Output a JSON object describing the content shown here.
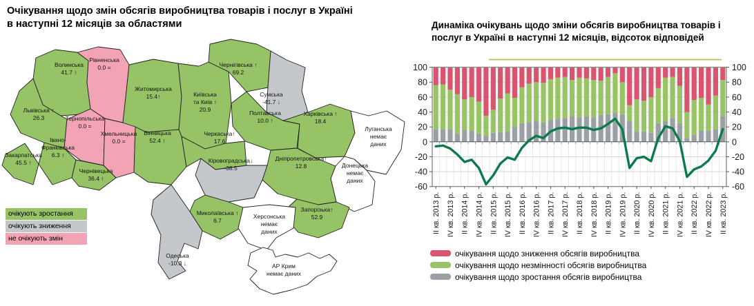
{
  "map": {
    "title_line1": "Очікування щодо змін обсягів виробництва товарів і послуг в Україні",
    "title_line2": "в наступні 12 місяців за областями",
    "no_data_text": "немає даних",
    "legend": [
      {
        "label": "очікують зростання",
        "status": "growth"
      },
      {
        "label": "очікують зниження",
        "status": "decline"
      },
      {
        "label": "не очікують змін",
        "status": "no_change"
      }
    ],
    "regions": [
      {
        "id": "volyn",
        "name": "Волинська",
        "value": "41.7",
        "trend": "up",
        "status": "growth",
        "lines": [
          "Волинська",
          "41.7 ↑"
        ]
      },
      {
        "id": "rivne",
        "name": "Рівненська",
        "value": "0.0",
        "trend": "equal",
        "status": "no_change",
        "lines": [
          "Рівненська",
          "0.0 ="
        ]
      },
      {
        "id": "zhytomyr",
        "name": "Житомирська",
        "value": "15.4",
        "trend": "up",
        "status": "growth",
        "lines": [
          "Житомирська",
          "15.4↑"
        ]
      },
      {
        "id": "kyivska",
        "name": "Київська та Київ",
        "value": "20.9",
        "trend": "up",
        "status": "growth",
        "lines": [
          "Київська",
          "та Київ ↑",
          "20.9"
        ]
      },
      {
        "id": "chernihiv",
        "name": "Чернігівська",
        "value": "69.2",
        "trend": "up",
        "status": "growth",
        "lines": [
          "Чернігівська ↑",
          "69.2"
        ]
      },
      {
        "id": "sumy",
        "name": "Сумська",
        "value": "-41.7",
        "trend": "down",
        "status": "decline",
        "lines": [
          "Сумська",
          "-41.7 ↓"
        ]
      },
      {
        "id": "lviv",
        "name": "Львівська",
        "value": "26.3",
        "trend": "up",
        "status": "growth",
        "lines": [
          "Львівська ↑",
          "26.3"
        ]
      },
      {
        "id": "ternopil",
        "name": "Тернопільська",
        "value": "0.0",
        "trend": "equal",
        "status": "no_change",
        "lines": [
          "Тернопільська",
          "0.0 ="
        ]
      },
      {
        "id": "khmelnytskyi",
        "name": "Хмельницька",
        "value": "0.0",
        "trend": "equal",
        "status": "no_change",
        "lines": [
          "Хмельницька",
          "0.0 ="
        ]
      },
      {
        "id": "ivano",
        "name": "Івано-Франківська",
        "value": "6.3",
        "trend": "up",
        "status": "growth",
        "lines": [
          "Івано-",
          "Франківська",
          "6.3 ↑"
        ]
      },
      {
        "id": "zakarpattia",
        "name": "Закарпатська",
        "value": "45.5",
        "trend": "up",
        "status": "growth",
        "lines": [
          "Закарпатська",
          "45.5 ↑"
        ]
      },
      {
        "id": "chernivtsi",
        "name": "Чернівецька",
        "value": "36.4",
        "trend": "up",
        "status": "growth",
        "lines": [
          "Чернівецька",
          "36.4 ↑"
        ]
      },
      {
        "id": "vinnytsia",
        "name": "Вінницька",
        "value": "52.4",
        "trend": "up",
        "status": "growth",
        "lines": [
          "Вінницька",
          "52.4 ↑"
        ]
      },
      {
        "id": "cherkasy",
        "name": "Черкаська",
        "value": "17.6",
        "trend": "up",
        "status": "growth",
        "lines": [
          "Черкаська↑",
          "17.6"
        ]
      },
      {
        "id": "poltava",
        "name": "Полтавська",
        "value": "10.0",
        "trend": "up",
        "status": "growth",
        "lines": [
          "Полтавська",
          "10.0 ↑"
        ]
      },
      {
        "id": "kharkiv",
        "name": "Харківська",
        "value": "18.4",
        "trend": "up",
        "status": "growth",
        "lines": [
          "Харківська ↑",
          "18.4"
        ]
      },
      {
        "id": "luhansk",
        "name": "Луганська",
        "value": "немає даних",
        "trend": null,
        "status": "no_data",
        "lines": [
          "Луганська",
          "немає",
          "даних"
        ]
      },
      {
        "id": "donetsk",
        "name": "Донецька",
        "value": "немає даних",
        "trend": null,
        "status": "no_data",
        "lines": [
          "Донецька",
          "немає",
          "даних"
        ]
      },
      {
        "id": "dnipro",
        "name": "Дніпропетровська",
        "value": "12.8",
        "trend": "up",
        "status": "growth",
        "lines": [
          "Дніпропетровська↑",
          "12.8"
        ]
      },
      {
        "id": "zaporizhzhia",
        "name": "Запорізька",
        "value": "52.9",
        "trend": "up",
        "status": "growth",
        "lines": [
          "Запорізька↑",
          "52.9"
        ]
      },
      {
        "id": "kirovohrad",
        "name": "Кіровоградська",
        "value": "-38.5",
        "trend": "down",
        "status": "decline",
        "lines": [
          "Кіровоградська↓",
          "-38.5"
        ]
      },
      {
        "id": "mykolaiv",
        "name": "Миколаївська",
        "value": "6.7",
        "trend": "up",
        "status": "growth",
        "lines": [
          "Миколаївська ↑",
          "6.7"
        ]
      },
      {
        "id": "odesa",
        "name": "Одеська",
        "value": "-10.3",
        "trend": "down",
        "status": "decline",
        "lines": [
          "Одеська",
          "-10.3 ↓"
        ]
      },
      {
        "id": "kherson",
        "name": "Херсонська",
        "value": "немає даних",
        "trend": null,
        "status": "no_data",
        "lines": [
          "Херсонська",
          "немає",
          "даних"
        ]
      },
      {
        "id": "crimea",
        "name": "АР Крим",
        "value": "немає даних",
        "trend": null,
        "status": "no_data",
        "lines": [
          "АР Крим",
          "немає даних"
        ]
      }
    ]
  },
  "chart": {
    "title": "Динаміка очікувань щодо зміни обсягів виробництва товарів і послуг в Україні в наступні 12 місяців, відсоток відповідей",
    "legend": [
      {
        "label": "очікування щодо зниження обсягів виробництва",
        "series": "decline"
      },
      {
        "label": "очікування щодо незмінності обсягів виробництва",
        "series": "unchanged"
      },
      {
        "label": "очікування щодо зростання обсягів виробництва",
        "series": "growth"
      }
    ]
  },
  "chart_data": {
    "type": "bar",
    "subtype": "stacked-bars-with-line",
    "title": "Динаміка очікувань щодо зміни обсягів виробництва товарів і послуг в Україні в наступні 12 місяців, відсоток відповідей",
    "ylim": [
      -60,
      100
    ],
    "y_ticks": [
      100,
      80,
      60,
      40,
      20,
      0,
      -20,
      -40,
      -60
    ],
    "grid": true,
    "legend_position": "bottom",
    "categories": [
      "II кв. 2013 р.",
      "III кв. 2013 р.",
      "IV кв. 2013 р.",
      "I кв. 2014 р.",
      "II кв. 2014 р.",
      "III кв. 2014 р.",
      "IV кв. 2014 р.",
      "I кв. 2015 р.",
      "II кв. 2015 р.",
      "III кв. 2015 р.",
      "IV кв. 2015 р.",
      "I кв. 2016 р.",
      "II кв. 2016 р.",
      "III кв. 2016 р.",
      "IV кв. 2016 р.",
      "I кв. 2017 р.",
      "II кв. 2017 р.",
      "III кв. 2017 р.",
      "IV кв. 2017 р.",
      "I кв. 2018 р.",
      "II кв. 2018 р.",
      "III кв. 2018 р.",
      "IV кв. 2018 р.",
      "I кв. 2019 р.",
      "II кв. 2019 р.",
      "III кв. 2019 р.",
      "IV кв. 2019 р.",
      "I кв. 2020 р.",
      "II кв. 2020 р.",
      "III кв. 2020 р.",
      "IV кв. 2020 р.",
      "I кв. 2021 р.",
      "II кв. 2021 р.",
      "III кв. 2021 р.",
      "IV кв. 2021 р.",
      "I кв. 2022 р.",
      "II кв. 2022 р.",
      "III кв. 2022 р.",
      "IV кв. 2022 р.",
      "I кв. 2023 р.",
      "II кв. 2023 р."
    ],
    "x_tick_labels": [
      "II кв. 2013 р.",
      "IV кв. 2013 р.",
      "II кв. 2014 р.",
      "IV кв. 2014 р.",
      "II кв. 2015 р.",
      "IV кв. 2015 р.",
      "II кв. 2016 р.",
      "IV кв. 2016 р.",
      "II кв. 2017 р.",
      "IV кв. 2017 р.",
      "II кв. 2018 р.",
      "IV кв. 2018 р.",
      "II кв. 2019 р.",
      "IV кв. 2019 р.",
      "II кв. 2020 р.",
      "IV кв. 2020 р.",
      "II кв. 2021 р.",
      "IV кв. 2021 р.",
      "II кв. 2022 р.",
      "IV кв. 2022 р.",
      "II кв. 2023 р."
    ],
    "series": [
      {
        "name": "очікування щодо зростання обсягів виробництва",
        "key": "growth",
        "stack_order": 1,
        "values": [
          17,
          17,
          17,
          11,
          16,
          15,
          11,
          8,
          12,
          13,
          14,
          20,
          25,
          26,
          28,
          26,
          30,
          31,
          32,
          34,
          33,
          34,
          33,
          36,
          37,
          39,
          37,
          28,
          14,
          14,
          12,
          25,
          28,
          32,
          25,
          5,
          9,
          15,
          15,
          17,
          34
        ]
      },
      {
        "name": "очікування щодо незмінності обсягів виробництва",
        "key": "unchanged",
        "stack_order": 2,
        "values": [
          59,
          60,
          53,
          53,
          41,
          45,
          43,
          27,
          31,
          45,
          51,
          39,
          48,
          52,
          52,
          53,
          54,
          55,
          55,
          49,
          53,
          51,
          50,
          46,
          50,
          53,
          43,
          21,
          43,
          41,
          48,
          47,
          58,
          55,
          50,
          35,
          47,
          44,
          35,
          45,
          49
        ]
      },
      {
        "name": "очікування щодо зниження обсягів виробництва",
        "key": "decline",
        "stack_order": 3,
        "values": [
          24,
          23,
          30,
          36,
          43,
          40,
          46,
          65,
          57,
          42,
          35,
          41,
          27,
          22,
          20,
          21,
          16,
          14,
          13,
          17,
          14,
          15,
          17,
          18,
          13,
          8,
          20,
          51,
          43,
          45,
          40,
          28,
          14,
          13,
          25,
          60,
          44,
          41,
          50,
          38,
          17
        ]
      },
      {
        "name": "баланс відповідей",
        "key": "balance",
        "type": "line",
        "values": [
          -6,
          -5,
          -9,
          -17,
          -27,
          -24,
          -35,
          -57,
          -45,
          -29,
          -21,
          -24,
          -8,
          2,
          8,
          5,
          14,
          18,
          19,
          17,
          19,
          19,
          16,
          18,
          24,
          31,
          17,
          -35,
          -22,
          -20,
          -26,
          5,
          21,
          18,
          1,
          -47,
          -37,
          -33,
          -25,
          -12,
          17
        ]
      }
    ]
  },
  "colors": {
    "region_growth": "#95c365",
    "region_decline": "#c4c8cc",
    "region_no_change": "#f2a4b4",
    "region_no_data": "#ffffff",
    "region_border": "#1f1f1f",
    "bar_decline": "#d8546f",
    "bar_unchanged": "#99c466",
    "bar_growth": "#9aa0a5",
    "balance_line": "#0c7a4b",
    "separator_line": "#a2c95a",
    "gridline": "#cfcfcf",
    "plot_border": "#8c8c8c"
  }
}
